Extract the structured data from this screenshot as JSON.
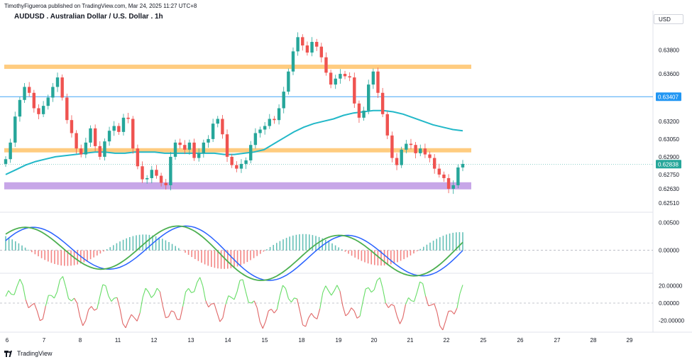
{
  "header": {
    "publisher": "TimothyFigueroa published on TradingView.com, Mar 24, 2025 11:27 UTC+8",
    "title": "AUDUSD . Australian Dollar / U.S. Dollar . 1h",
    "currency": "USD"
  },
  "footer": {
    "brand": "TradingView"
  },
  "colors": {
    "up": "#26a69a",
    "down": "#ef5350",
    "ma": "#22b8c8",
    "resistance": "#ffcc80",
    "support": "#c7a6e8",
    "blue_line": "#2196f3",
    "osc_green": "#4caf50",
    "osc_blue": "#2962ff",
    "osc_dark": "#b71c1c",
    "rsi_green": "#66dd66",
    "rsi_red": "#e06666"
  },
  "chart_data": [
    {
      "type": "candlestick",
      "title": "AUDUSD . Australian Dollar / U.S. Dollar . 1h",
      "x_ticks": [
        "6",
        "7",
        "8",
        "11",
        "12",
        "13",
        "14",
        "15",
        "18",
        "19",
        "20",
        "21",
        "22",
        "25",
        "26",
        "27",
        "28",
        "29"
      ],
      "y_ticks": [
        "0.63800",
        "0.63600",
        "0.63407",
        "0.63200",
        "0.63050",
        "0.62900",
        "0.62838",
        "0.62750",
        "0.62630",
        "0.62510"
      ],
      "ylim": [
        0.6245,
        0.6402
      ],
      "price_labels": {
        "blue_line": "0.63407",
        "last": "0.62838"
      },
      "horizontal_levels": [
        {
          "name": "resistance",
          "value": 0.6366
        },
        {
          "name": "blue-line",
          "value": 0.63407
        },
        {
          "name": "support-upper",
          "value": 0.62955
        },
        {
          "name": "support-lower",
          "value": 0.62655
        }
      ],
      "close_series": [
        0.6288,
        0.6302,
        0.6324,
        0.6338,
        0.6349,
        0.6344,
        0.6331,
        0.6326,
        0.6333,
        0.634,
        0.6349,
        0.6357,
        0.634,
        0.6321,
        0.631,
        0.6297,
        0.6292,
        0.6302,
        0.6314,
        0.6299,
        0.629,
        0.6303,
        0.6312,
        0.6316,
        0.6311,
        0.6323,
        0.6322,
        0.6297,
        0.6282,
        0.6271,
        0.6272,
        0.6279,
        0.6274,
        0.6268,
        0.6266,
        0.629,
        0.6302,
        0.63,
        0.6296,
        0.6302,
        0.6289,
        0.6293,
        0.6302,
        0.6305,
        0.6318,
        0.6322,
        0.6309,
        0.629,
        0.6283,
        0.628,
        0.6284,
        0.6287,
        0.63,
        0.631,
        0.6313,
        0.6316,
        0.6322,
        0.6321,
        0.6331,
        0.6345,
        0.6362,
        0.6379,
        0.6391,
        0.6384,
        0.6378,
        0.6387,
        0.6383,
        0.6374,
        0.6361,
        0.6351,
        0.6356,
        0.636,
        0.6358,
        0.6357,
        0.6335,
        0.6323,
        0.6329,
        0.6351,
        0.6362,
        0.6344,
        0.6326,
        0.6308,
        0.6289,
        0.6283,
        0.6296,
        0.6301,
        0.63,
        0.6293,
        0.6297,
        0.6292,
        0.6289,
        0.628,
        0.6275,
        0.6272,
        0.6263,
        0.6266,
        0.6281,
        0.6284
      ],
      "ma_series": [
        0.6275,
        0.6279,
        0.6283,
        0.6286,
        0.6288,
        0.629,
        0.6291,
        0.6292,
        0.6293,
        0.6294,
        0.6294,
        0.6293,
        0.6293,
        0.6294,
        0.6294,
        0.6294,
        0.6293,
        0.6293,
        0.6293,
        0.6293,
        0.6293,
        0.6293,
        0.6292,
        0.6292,
        0.6293,
        0.6294,
        0.6296,
        0.6301,
        0.6306,
        0.6311,
        0.6315,
        0.6318,
        0.632,
        0.6322,
        0.6325,
        0.6327,
        0.6328,
        0.6329,
        0.6329,
        0.6328,
        0.6326,
        0.6323,
        0.632,
        0.6317,
        0.6315,
        0.6313,
        0.6312
      ]
    },
    {
      "type": "line",
      "name": "oscillator",
      "y_ticks": [
        "0.00500",
        "0.00000"
      ],
      "ylim": [
        -0.0035,
        0.0062
      ]
    },
    {
      "type": "line",
      "name": "momentum",
      "y_ticks": [
        "20.00000",
        "0.00000",
        "-20.00000"
      ],
      "ylim": [
        -30,
        30
      ]
    }
  ]
}
